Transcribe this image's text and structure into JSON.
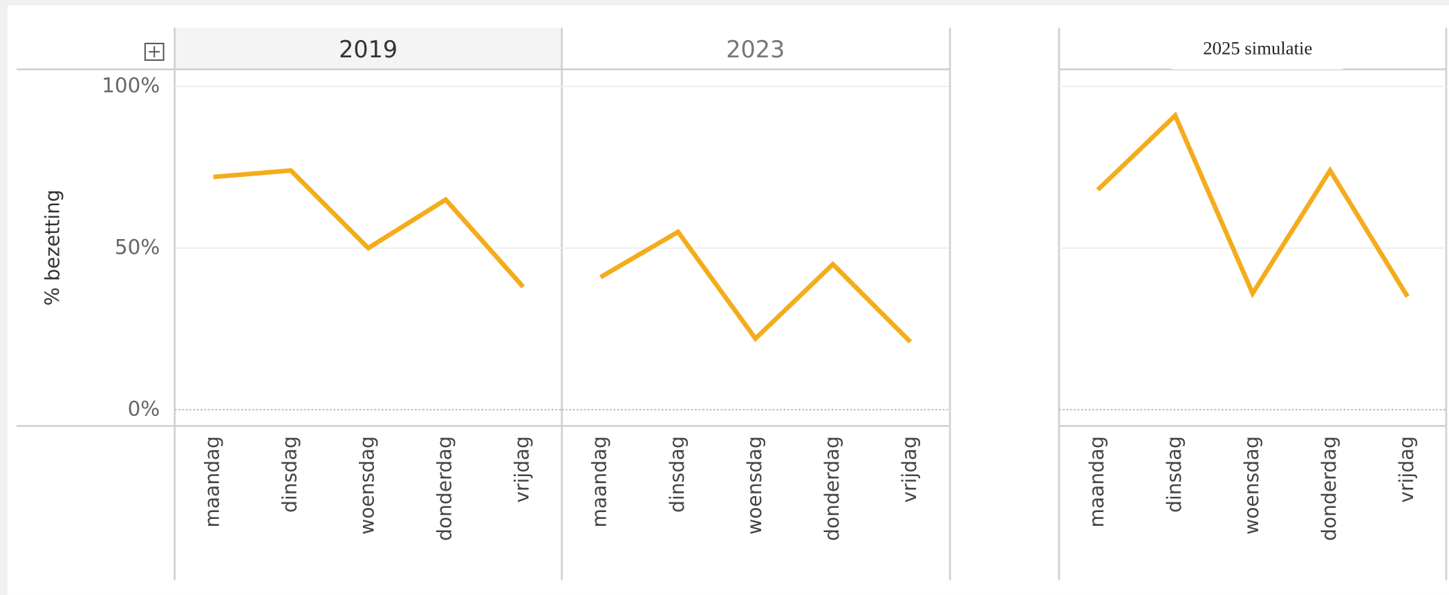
{
  "chart_data": [
    {
      "type": "line",
      "title": "2019",
      "ylabel": "% bezetting",
      "categories": [
        "maandag",
        "dinsdag",
        "woensdag",
        "donderdag",
        "vrijdag"
      ],
      "values": [
        72,
        74,
        50,
        65,
        38
      ],
      "color": "#f4ac1c",
      "ylim": [
        -5,
        105
      ],
      "yticks": [
        {
          "value": 0,
          "label": "0%"
        },
        {
          "value": 50,
          "label": "50%"
        },
        {
          "value": 100,
          "label": "100%"
        }
      ],
      "grid": true
    },
    {
      "type": "line",
      "title": "2023",
      "categories": [
        "maandag",
        "dinsdag",
        "woensdag",
        "donderdag",
        "vrijdag"
      ],
      "values": [
        41,
        55,
        22,
        45,
        21
      ],
      "color": "#f4ac1c",
      "ylim": [
        -5,
        105
      ],
      "yticks": [
        {
          "value": 0,
          "label": "0%"
        },
        {
          "value": 50,
          "label": "50%"
        },
        {
          "value": 100,
          "label": "100%"
        }
      ],
      "grid": true
    },
    {
      "type": "line",
      "title": "2025 simulatie",
      "categories": [
        "maandag",
        "dinsdag",
        "woensdag",
        "donderdag",
        "vrijdag"
      ],
      "values": [
        68,
        91,
        36,
        74,
        35
      ],
      "color": "#f4ac1c",
      "ylim": [
        -5,
        105
      ],
      "yticks": [
        {
          "value": 0,
          "label": "0%"
        },
        {
          "value": 50,
          "label": "50%"
        },
        {
          "value": 100,
          "label": "100%"
        }
      ],
      "grid": true
    }
  ]
}
